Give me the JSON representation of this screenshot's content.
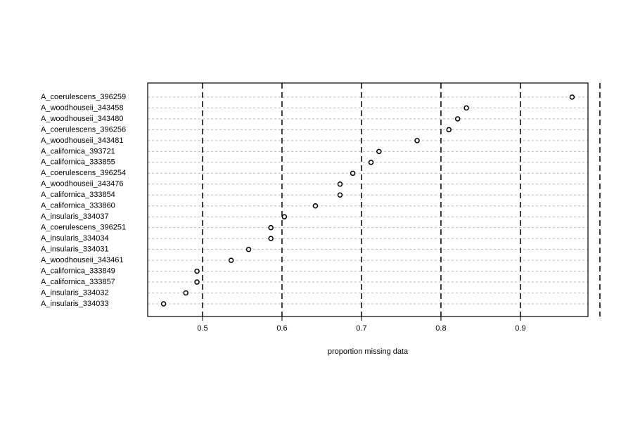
{
  "chart_data": {
    "type": "dotchart",
    "xlabel": "proportion missing data",
    "categories": [
      "A_coerulescens_396259",
      "A_woodhouseii_343458",
      "A_woodhouseii_343480",
      "A_coerulescens_396256",
      "A_woodhouseii_343481",
      "A_californica_393721",
      "A_californica_333855",
      "A_coerulescens_396254",
      "A_woodhouseii_343476",
      "A_californica_333854",
      "A_californica_333860",
      "A_insularis_334037",
      "A_coerulescens_396251",
      "A_insularis_334034",
      "A_insularis_334031",
      "A_woodhouseii_343461",
      "A_californica_333849",
      "A_californica_333857",
      "A_insularis_334032",
      "A_insularis_334033"
    ],
    "values": [
      0.965,
      0.832,
      0.821,
      0.81,
      0.77,
      0.722,
      0.712,
      0.689,
      0.673,
      0.673,
      0.642,
      0.603,
      0.586,
      0.586,
      0.558,
      0.536,
      0.493,
      0.493,
      0.479,
      0.451
    ],
    "color": "#000000",
    "xlim": [
      0.431,
      0.985
    ],
    "xticks": [
      0.5,
      0.6,
      0.7,
      0.8,
      0.9
    ],
    "vlines": [
      0.5,
      0.6,
      0.7,
      0.8,
      0.9,
      1.0
    ]
  }
}
